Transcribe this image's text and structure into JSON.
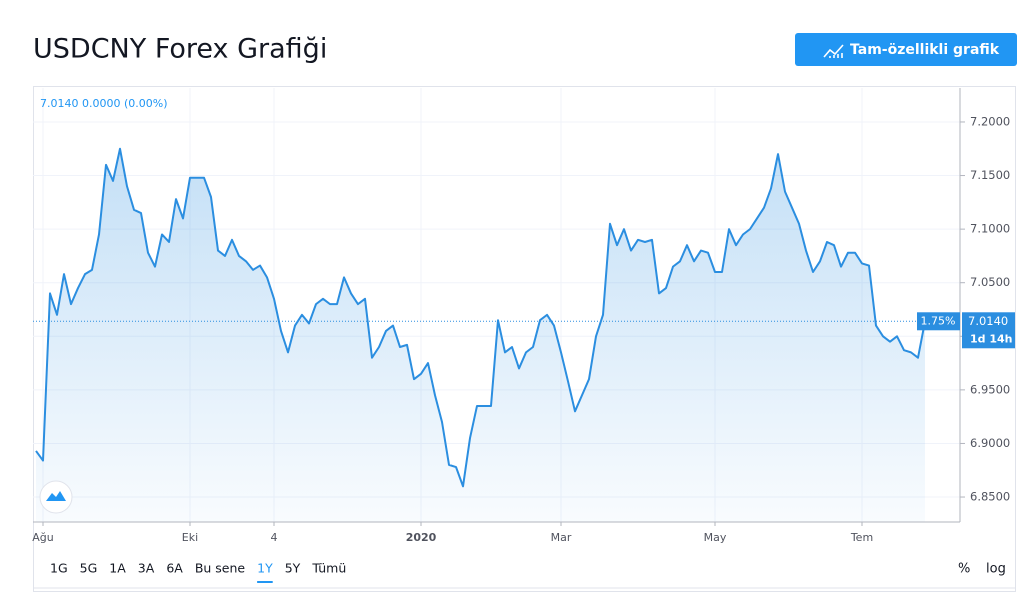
{
  "header": {
    "title": "USDCNY Forex Grafiği",
    "button": "Tam-özellikli grafik"
  },
  "chart_data": {
    "type": "line",
    "legend_text": "7.0140  0.0000 (0.00%)",
    "price_badge": "7.0140",
    "change_badge": "1.75%",
    "countdown_badge": "1d 14h",
    "categories": [
      null,
      "Ağu",
      null,
      null,
      null,
      null,
      null,
      null,
      null,
      null,
      null,
      null,
      null,
      null,
      null,
      null,
      null,
      null,
      null,
      null,
      null,
      null,
      "Eki",
      null,
      null,
      null,
      null,
      null,
      null,
      null,
      null,
      null,
      null,
      null,
      "4",
      null,
      null,
      null,
      null,
      null,
      null,
      null,
      null,
      null,
      null,
      null,
      null,
      null,
      null,
      null,
      null,
      null,
      null,
      null,
      null,
      "2020",
      null,
      null,
      null,
      null,
      null,
      null,
      null,
      null,
      null,
      null,
      null,
      null,
      null,
      null,
      null,
      null,
      null,
      null,
      null,
      "Mar",
      null,
      null,
      null,
      null,
      null,
      null,
      null,
      null,
      null,
      null,
      null,
      null,
      null,
      null,
      null,
      null,
      null,
      null,
      null,
      null,
      null,
      "May",
      null,
      null,
      null,
      null,
      null,
      null,
      null,
      null,
      null,
      null,
      null,
      null,
      null,
      null,
      null,
      null,
      null,
      null,
      null,
      null,
      "Tem",
      null,
      null,
      null,
      null,
      null,
      null,
      null,
      null,
      null
    ],
    "series": [
      {
        "name": "USDCNY",
        "color": "#2b8ee0",
        "values": [
          6.893,
          6.884,
          7.04,
          7.02,
          7.058,
          7.03,
          7.045,
          7.058,
          7.062,
          7.095,
          7.16,
          7.145,
          7.175,
          7.14,
          7.118,
          7.115,
          7.078,
          7.065,
          7.095,
          7.088,
          7.128,
          7.11,
          7.148,
          7.148,
          7.148,
          7.13,
          7.08,
          7.075,
          7.09,
          7.075,
          7.07,
          7.062,
          7.066,
          7.055,
          7.035,
          7.005,
          6.985,
          7.01,
          7.02,
          7.012,
          7.03,
          7.035,
          7.03,
          7.03,
          7.055,
          7.04,
          7.03,
          7.035,
          6.98,
          6.99,
          7.005,
          7.01,
          6.99,
          6.992,
          6.96,
          6.965,
          6.975,
          6.945,
          6.92,
          6.88,
          6.878,
          6.86,
          6.905,
          6.935,
          6.935,
          6.935,
          7.015,
          6.985,
          6.99,
          6.97,
          6.985,
          6.99,
          7.015,
          7.02,
          7.01,
          6.985,
          6.958,
          6.93,
          6.945,
          6.96,
          7.0,
          7.02,
          7.105,
          7.085,
          7.1,
          7.08,
          7.09,
          7.088,
          7.09,
          7.04,
          7.045,
          7.065,
          7.07,
          7.085,
          7.07,
          7.08,
          7.078,
          7.06,
          7.06,
          7.1,
          7.085,
          7.095,
          7.1,
          7.11,
          7.12,
          7.138,
          7.17,
          7.135,
          7.12,
          7.105,
          7.08,
          7.06,
          7.07,
          7.088,
          7.085,
          7.065,
          7.078,
          7.078,
          7.068,
          7.066,
          7.01,
          7.0,
          6.995,
          7.0,
          6.987,
          6.985,
          6.98,
          7.014
        ]
      }
    ],
    "ylim": [
      6.8267,
      7.2317
    ],
    "yticks": [
      {
        "value": 6.85,
        "label": "6.8500"
      },
      {
        "value": 6.9,
        "label": "6.9000"
      },
      {
        "value": 6.95,
        "label": "6.9500"
      },
      {
        "value": 7.0,
        "label": "7.0000"
      },
      {
        "value": 7.05,
        "label": "7.0500"
      },
      {
        "value": 7.1,
        "label": "7.1000"
      },
      {
        "value": 7.15,
        "label": "7.1500"
      },
      {
        "value": 7.2,
        "label": "7.2000"
      }
    ],
    "grid": true
  },
  "toolbar": {
    "ranges": [
      "1G",
      "5G",
      "1A",
      "3A",
      "6A",
      "Bu sene",
      "1Y",
      "5Y",
      "Tümü"
    ],
    "selected_range": "1Y",
    "scale_options": [
      "%",
      "log"
    ]
  }
}
